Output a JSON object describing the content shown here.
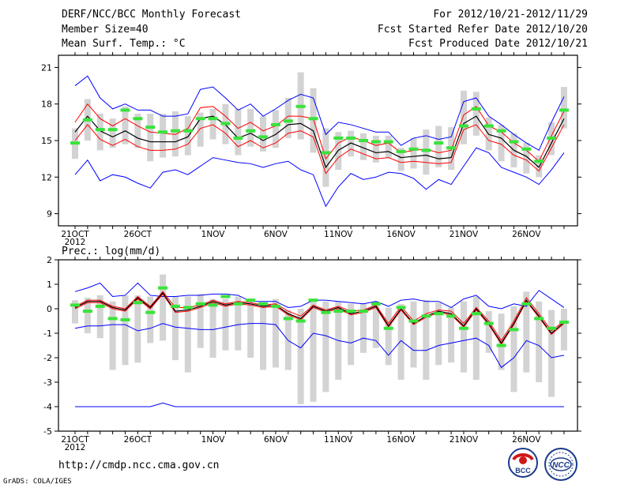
{
  "header": {
    "title": "DERF/NCC/BCC Monthly Forecast",
    "member": "Member Size=40",
    "variable": "Mean Surf. Temp.: °C",
    "period": "For 2012/10/21-2012/11/29",
    "refer": "Fcst Started Refer Date 2012/10/20",
    "produced": "Fcst Produced Date 2012/10/21"
  },
  "footer": {
    "url": "http://cmdp.ncc.cma.gov.cn",
    "grads": "GrADS: COLA/IGES",
    "logo1": "BCC",
    "logo2": "NCC"
  },
  "colors": {
    "box": "#d3d3d3",
    "median": "#39e33a",
    "mean": "#000000",
    "inner": "#ff0000",
    "outer": "#0000ff"
  },
  "chart_data": [
    {
      "type": "line",
      "title": "Mean Surf. Temp.: °C",
      "ylim": [
        8,
        22
      ],
      "yticks": [
        9,
        12,
        15,
        18,
        21
      ],
      "xticks": [
        {
          "day": 1,
          "label": "21OCT",
          "sub": "2012"
        },
        {
          "day": 6,
          "label": "26OCT"
        },
        {
          "day": 12,
          "label": "1NOV"
        },
        {
          "day": 17,
          "label": "6NOV"
        },
        {
          "day": 22,
          "label": "11NOV"
        },
        {
          "day": 27,
          "label": "16NOV"
        },
        {
          "day": 32,
          "label": "21NOV"
        },
        {
          "day": 37,
          "label": "26NOV"
        }
      ],
      "x": [
        1,
        2,
        3,
        4,
        5,
        6,
        7,
        8,
        9,
        10,
        11,
        12,
        13,
        14,
        15,
        16,
        17,
        18,
        19,
        20,
        21,
        22,
        23,
        24,
        25,
        26,
        27,
        28,
        29,
        30,
        31,
        32,
        33,
        34,
        35,
        36,
        37,
        38,
        39,
        40
      ],
      "series": [
        {
          "name": "max",
          "values": [
            19.5,
            20.3,
            18.5,
            17.6,
            18.0,
            17.5,
            17.5,
            17.0,
            17.0,
            17.2,
            19.2,
            19.4,
            18.5,
            17.5,
            18.0,
            17.0,
            17.6,
            18.3,
            18.8,
            18.5,
            15.5,
            16.5,
            16.3,
            16.0,
            15.7,
            15.7,
            14.6,
            15.2,
            15.4,
            15.1,
            15.3,
            18.2,
            18.5,
            17.0,
            16.3,
            15.5,
            14.8,
            14.2,
            16.5,
            18.6
          ]
        },
        {
          "name": "upper",
          "values": [
            16.5,
            18.0,
            16.8,
            16.2,
            16.8,
            16.2,
            15.7,
            15.6,
            15.5,
            16.0,
            17.7,
            17.8,
            17.0,
            16.0,
            16.5,
            15.8,
            16.2,
            17.0,
            17.0,
            16.8,
            13.5,
            14.8,
            15.3,
            15.0,
            14.6,
            14.8,
            14.0,
            14.2,
            14.3,
            14.0,
            14.2,
            17.1,
            17.8,
            16.2,
            15.7,
            14.8,
            14.2,
            13.3,
            15.4,
            17.4
          ]
        },
        {
          "name": "mean",
          "values": [
            15.7,
            17.0,
            15.8,
            15.3,
            15.8,
            15.2,
            14.9,
            14.9,
            14.9,
            15.3,
            16.8,
            17.0,
            16.3,
            15.2,
            15.6,
            15.0,
            15.5,
            16.3,
            16.4,
            15.8,
            12.8,
            14.2,
            14.8,
            14.4,
            14.0,
            14.1,
            13.6,
            13.7,
            13.8,
            13.5,
            13.6,
            16.4,
            17.0,
            15.5,
            15.2,
            14.2,
            13.7,
            12.8,
            14.8,
            16.8
          ]
        },
        {
          "name": "lower",
          "values": [
            15.0,
            16.3,
            15.1,
            14.6,
            15.1,
            14.5,
            14.2,
            14.2,
            14.3,
            14.7,
            16.0,
            16.3,
            15.6,
            14.5,
            15.0,
            14.4,
            14.8,
            15.6,
            15.8,
            15.3,
            12.3,
            13.6,
            14.3,
            13.9,
            13.5,
            13.6,
            13.2,
            13.3,
            13.2,
            13.1,
            13.2,
            15.9,
            16.3,
            15.0,
            14.7,
            13.8,
            13.4,
            12.5,
            14.4,
            16.3
          ]
        },
        {
          "name": "min",
          "values": [
            12.2,
            13.4,
            11.7,
            12.2,
            12.0,
            11.5,
            11.1,
            12.4,
            12.6,
            12.2,
            12.9,
            13.6,
            13.4,
            13.2,
            13.1,
            12.8,
            13.1,
            13.3,
            12.6,
            12.2,
            9.6,
            11.2,
            12.3,
            11.8,
            12.0,
            12.4,
            12.3,
            11.9,
            11.0,
            11.8,
            11.4,
            12.9,
            14.4,
            14.0,
            12.8,
            12.4,
            12.0,
            11.4,
            12.6,
            14.0
          ]
        },
        {
          "name": "median",
          "values": [
            14.8,
            16.7,
            15.9,
            15.9,
            17.5,
            16.8,
            16.1,
            15.7,
            15.8,
            15.8,
            16.8,
            16.8,
            16.4,
            15.2,
            15.8,
            15.3,
            16.3,
            16.6,
            17.8,
            16.8,
            14.0,
            15.2,
            15.2,
            15.0,
            14.9,
            14.9,
            14.1,
            14.3,
            14.2,
            14.8,
            14.4,
            16.2,
            17.6,
            16.2,
            15.8,
            14.9,
            14.3,
            13.3,
            15.2,
            17.5
          ]
        },
        {
          "name": "box_top",
          "values": [
            16.0,
            18.4,
            17.2,
            16.8,
            17.8,
            17.2,
            17.2,
            17.2,
            17.4,
            17.0,
            17.3,
            17.6,
            18.0,
            17.6,
            17.6,
            17.0,
            17.5,
            18.5,
            20.6,
            19.3,
            16.0,
            15.7,
            15.8,
            15.6,
            15.4,
            15.4,
            14.4,
            15.2,
            15.9,
            16.2,
            16.1,
            19.1,
            19.0,
            16.9,
            16.3,
            15.6,
            14.8,
            13.8,
            16.5,
            19.4
          ]
        },
        {
          "name": "box_bottom",
          "values": [
            13.5,
            15.0,
            14.2,
            14.4,
            14.7,
            14.4,
            13.3,
            13.6,
            13.7,
            13.8,
            14.5,
            15.1,
            14.7,
            13.8,
            14.5,
            14.1,
            14.4,
            15.2,
            15.1,
            14.0,
            11.2,
            12.6,
            13.7,
            13.4,
            13.2,
            13.6,
            12.5,
            12.7,
            12.2,
            12.8,
            12.6,
            14.7,
            15.4,
            14.2,
            13.3,
            12.8,
            12.3,
            12.0,
            13.8,
            16.0
          ]
        }
      ]
    },
    {
      "type": "line",
      "title": "Prec.: log(mm/d)",
      "ylim": [
        -5,
        2
      ],
      "yticks": [
        -5,
        -4,
        -3,
        -2,
        -1,
        0,
        1,
        2
      ],
      "xticks": [
        {
          "day": 1,
          "label": "21OCT",
          "sub": "2012"
        },
        {
          "day": 6,
          "label": "26OCT"
        },
        {
          "day": 12,
          "label": "1NOV"
        },
        {
          "day": 17,
          "label": "6NOV"
        },
        {
          "day": 22,
          "label": "11NOV"
        },
        {
          "day": 27,
          "label": "16NOV"
        },
        {
          "day": 32,
          "label": "21NOV"
        },
        {
          "day": 37,
          "label": "26NOV"
        }
      ],
      "x": [
        1,
        2,
        3,
        4,
        5,
        6,
        7,
        8,
        9,
        10,
        11,
        12,
        13,
        14,
        15,
        16,
        17,
        18,
        19,
        20,
        21,
        22,
        23,
        24,
        25,
        26,
        27,
        28,
        29,
        30,
        31,
        32,
        33,
        34,
        35,
        36,
        37,
        38,
        39,
        40
      ],
      "series": [
        {
          "name": "max",
          "values": [
            0.7,
            0.85,
            1.05,
            0.5,
            0.55,
            1.05,
            0.55,
            0.5,
            0.5,
            0.55,
            0.55,
            0.6,
            0.6,
            0.55,
            0.3,
            0.3,
            0.3,
            0.05,
            0.1,
            0.35,
            0.35,
            0.3,
            0.25,
            0.2,
            0.3,
            0.1,
            0.35,
            0.4,
            0.3,
            0.3,
            0.05,
            0.4,
            0.55,
            0.1,
            0.0,
            0.2,
            0.1,
            0.75,
            0.4,
            0.05
          ]
        },
        {
          "name": "upper",
          "values": [
            0.1,
            0.35,
            0.35,
            0.1,
            0.0,
            0.5,
            0.1,
            0.7,
            0.05,
            0.05,
            0.15,
            0.35,
            0.2,
            0.3,
            0.25,
            0.15,
            0.2,
            -0.1,
            -0.3,
            0.15,
            -0.05,
            0.1,
            -0.1,
            -0.05,
            0.15,
            -0.6,
            0.1,
            -0.5,
            -0.2,
            -0.05,
            -0.1,
            -0.6,
            0.05,
            -0.5,
            -1.3,
            -0.5,
            0.45,
            -0.2,
            -0.9,
            -0.5
          ]
        },
        {
          "name": "mean",
          "values": [
            0.05,
            0.3,
            0.3,
            0.05,
            -0.05,
            0.45,
            0.05,
            0.65,
            -0.1,
            -0.05,
            0.1,
            0.3,
            0.15,
            0.25,
            0.2,
            0.1,
            0.15,
            -0.2,
            -0.4,
            0.1,
            -0.1,
            0.05,
            -0.2,
            -0.1,
            0.1,
            -0.7,
            0.0,
            -0.6,
            -0.3,
            -0.1,
            -0.2,
            -0.7,
            0.0,
            -0.6,
            -1.4,
            -0.6,
            0.35,
            -0.3,
            -1.0,
            -0.55
          ]
        },
        {
          "name": "lower",
          "values": [
            0.0,
            0.25,
            0.25,
            0.0,
            -0.1,
            0.4,
            0.0,
            0.6,
            -0.15,
            -0.1,
            0.05,
            0.25,
            0.1,
            0.2,
            0.15,
            0.05,
            0.1,
            -0.25,
            -0.45,
            0.05,
            -0.15,
            0.0,
            -0.25,
            -0.15,
            0.05,
            -0.75,
            -0.05,
            -0.65,
            -0.35,
            -0.15,
            -0.25,
            -0.75,
            -0.05,
            -0.65,
            -1.45,
            -0.65,
            0.3,
            -0.35,
            -1.05,
            -0.6
          ]
        },
        {
          "name": "min",
          "values": [
            -0.8,
            -0.7,
            -0.7,
            -0.65,
            -0.65,
            -0.9,
            -0.8,
            -0.6,
            -0.75,
            -0.8,
            -0.85,
            -0.85,
            -0.75,
            -0.65,
            -0.6,
            -0.6,
            -0.65,
            -1.3,
            -1.6,
            -1.0,
            -1.1,
            -1.3,
            -1.4,
            -1.2,
            -1.3,
            -1.9,
            -1.3,
            -1.7,
            -1.7,
            -1.5,
            -1.4,
            -1.3,
            -1.2,
            -1.5,
            -2.4,
            -2.0,
            -1.3,
            -1.5,
            -2.0,
            -1.9
          ]
        },
        {
          "name": "bottom",
          "values": [
            -4,
            -4,
            -4,
            -4,
            -4,
            -4,
            -4,
            -3.85,
            -4,
            -4,
            -4,
            -4,
            -4,
            -4,
            -4,
            -4,
            -4,
            -4,
            -4,
            -4,
            -4,
            -4,
            -4,
            -4,
            -4,
            -4,
            -4,
            -4,
            -4,
            -4,
            -4,
            -4,
            -4,
            -4,
            -4,
            -4,
            -4,
            -4,
            -4,
            -4
          ]
        },
        {
          "name": "median",
          "values": [
            0.15,
            -0.1,
            0.1,
            -0.4,
            -0.45,
            0.25,
            -0.15,
            0.85,
            0.1,
            0.05,
            0.2,
            0.15,
            0.5,
            0.2,
            0.35,
            0.2,
            0.1,
            -0.4,
            -0.5,
            0.35,
            -0.15,
            -0.1,
            -0.1,
            -0.1,
            0.2,
            -0.8,
            0.05,
            -0.5,
            -0.3,
            -0.2,
            -0.3,
            -0.8,
            -0.2,
            -0.6,
            -1.5,
            -0.85,
            0.2,
            -0.4,
            -0.8,
            -0.55
          ]
        },
        {
          "name": "box_top",
          "values": [
            0.35,
            0.45,
            0.55,
            0.3,
            0.55,
            0.55,
            0.5,
            1.4,
            0.5,
            0.5,
            0.6,
            0.4,
            0.4,
            0.5,
            0.2,
            0.2,
            0.4,
            -0.05,
            0.0,
            0.4,
            0.3,
            0.3,
            0.2,
            0.2,
            0.3,
            0.05,
            0.2,
            0.3,
            0.35,
            0.25,
            0.05,
            0.3,
            0.5,
            -0.1,
            -0.2,
            0.1,
            0.7,
            0.3,
            -0.05,
            0.0
          ]
        },
        {
          "name": "box_bottom",
          "values": [
            -0.6,
            -1.0,
            -1.2,
            -2.5,
            -2.3,
            -2.2,
            -1.4,
            -1.3,
            -2.1,
            -2.6,
            -1.6,
            -2.0,
            -1.7,
            -1.7,
            -2.0,
            -2.5,
            -2.4,
            -2.5,
            -3.9,
            -3.8,
            -3.4,
            -2.9,
            -2.3,
            -1.8,
            -1.6,
            -2.3,
            -2.9,
            -2.4,
            -2.9,
            -2.3,
            -2.2,
            -2.6,
            -2.9,
            -1.8,
            -2.5,
            -3.4,
            -2.6,
            -3.0,
            -3.6,
            -1.7
          ]
        }
      ]
    }
  ]
}
